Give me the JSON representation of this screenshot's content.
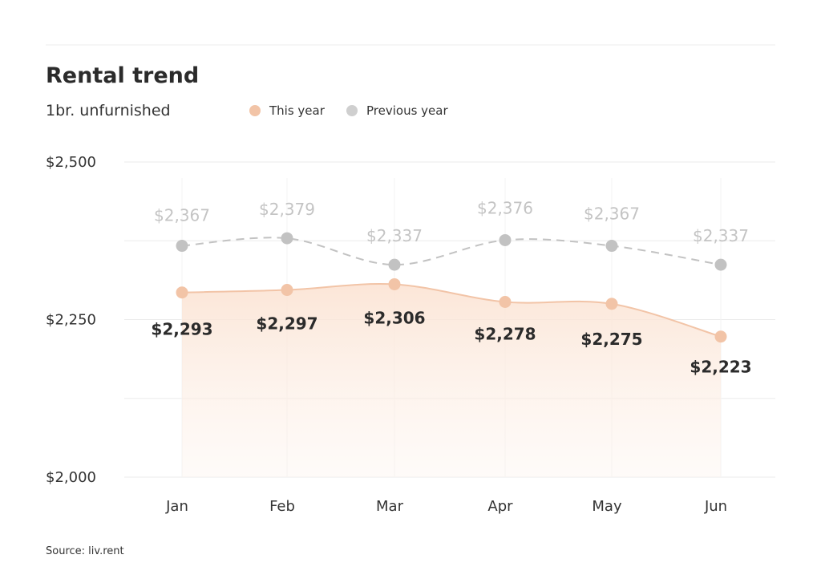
{
  "header": {
    "title": "Rental trend",
    "subtitle": "1br. unfurnished",
    "source": "Source: liv.rent"
  },
  "legend": [
    {
      "name": "This year",
      "color": "#f2c4a7"
    },
    {
      "name": "Previous year",
      "color": "#cfcfcf"
    }
  ],
  "chart_data": {
    "type": "line",
    "categories": [
      "Jan",
      "Feb",
      "Mar",
      "Apr",
      "May",
      "Jun"
    ],
    "series": [
      {
        "name": "This year",
        "values": [
          2293,
          2297,
          2306,
          2278,
          2275,
          2223
        ],
        "labels": [
          "$2,293",
          "$2,297",
          "$2,306",
          "$2,278",
          "$2,275",
          "$2,223"
        ],
        "color": "#f2c4a7",
        "style": "solid-area"
      },
      {
        "name": "Previous year",
        "values": [
          2367,
          2379,
          2337,
          2376,
          2367,
          2337
        ],
        "labels": [
          "$2,367",
          "$2,379",
          "$2,337",
          "$2,376",
          "$2,367",
          "$2,337"
        ],
        "color": "#c2c2c2",
        "style": "dashed"
      }
    ],
    "yticks": [
      2000,
      2250,
      2500
    ],
    "ytick_labels": [
      "$2,000",
      "$2,250",
      "$2,500"
    ],
    "ylim": [
      2000,
      2500
    ],
    "grid": true,
    "legend_position": "top"
  }
}
